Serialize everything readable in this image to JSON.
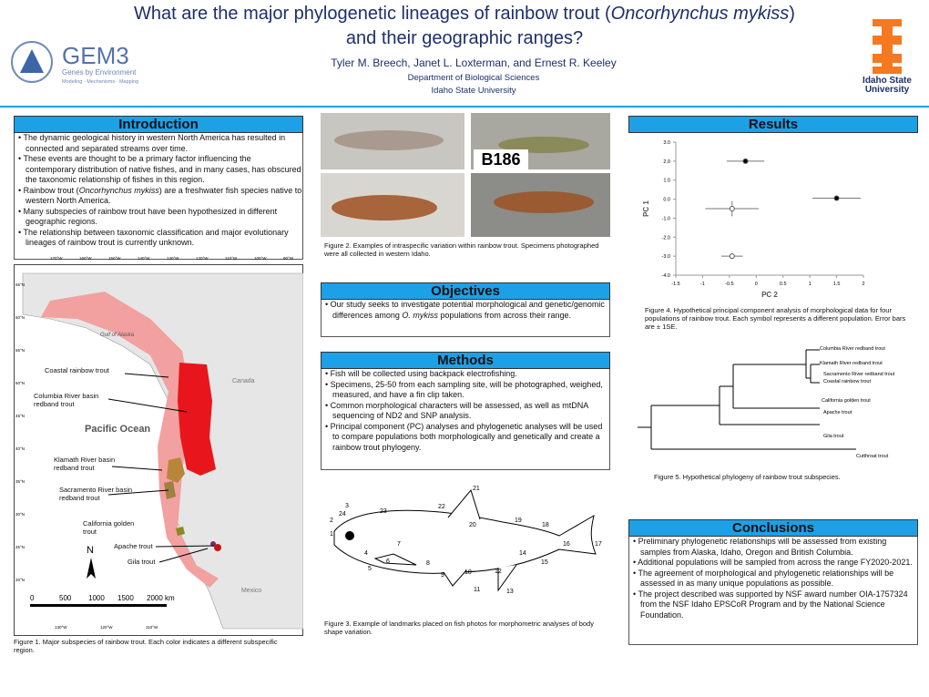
{
  "header": {
    "title_line1": [
      "What are the major phylogenetic lineages of rainbow trout (",
      "Oncorhynchus mykiss",
      ")"
    ],
    "title_line2": "and their geographic ranges?",
    "authors": "Tyler M. Breech, Janet L. Loxterman, and Ernest R. Keeley",
    "department": "Department of Biological Sciences",
    "university": "Idaho State University"
  },
  "logos": {
    "gem3": "GEM3",
    "gem3_sub": "Genes by Environment",
    "gem3_sub2": "Modeling · Mechanisms · Mapping",
    "isu_line1": "Idaho State",
    "isu_line2": "University"
  },
  "introduction": {
    "heading": "Introduction",
    "bullets": [
      [
        "The dynamic geological history in western North America has resulted in connected and separated streams over time."
      ],
      [
        "These events are thought to be a primary factor influencing the contemporary distribution of native fishes, and in many cases, has obscured the taxonomic relationship of fishes in this region."
      ],
      [
        "Rainbow trout (",
        "Oncorhynchus mykiss",
        ") are a freshwater fish species native to western North America."
      ],
      [
        "Many subspecies of rainbow trout have been hypothesized in different geographic regions."
      ],
      [
        "The relationship between taxonomic classification and major evolutionary lineages of rainbow trout is currently unknown."
      ]
    ]
  },
  "map": {
    "labels": {
      "coastal": "Coastal rainbow trout",
      "columbia": "Columbia River basin redband trout",
      "klamath": "Klamath River basin redband trout",
      "sacramento": "Sacramento River basin redband trout",
      "golden": "California golden trout",
      "apache": "Apache trout",
      "gila": "Gila trout"
    },
    "pacific": "Pacific Ocean",
    "gulf": "Gulf of Alaska",
    "canada": "Canada",
    "mexico": "Mexico",
    "north": "N",
    "scale": [
      "0",
      "500",
      "1000",
      "1500",
      "2000 km"
    ],
    "top_longitudes": [
      "170°W",
      "160°W",
      "150°W",
      "140°W",
      "130°W",
      "120°W",
      "110°W",
      "100°W",
      "90°W"
    ],
    "bottom_longitudes": [
      "130°W",
      "120°W",
      "110°W"
    ],
    "latitudes": [
      "65°N",
      "60°N",
      "55°N",
      "50°N",
      "45°N",
      "40°N",
      "35°N",
      "30°N",
      "25°N",
      "20°N"
    ]
  },
  "figure1_caption": "Figure 1. Major subspecies of rainbow trout.  Each color indicates a different subspecific region.",
  "photos": {
    "tag": "B186"
  },
  "figure2_caption": "Figure 2. Examples of intraspecific variation within rainbow trout.  Specimens photographed were all collected in western Idaho.",
  "objectives": {
    "heading": "Objectives",
    "bullets": [
      [
        "Our study seeks to investigate potential morphological and genetic/genomic differences among ",
        "O. mykiss",
        " populations from across their range."
      ]
    ]
  },
  "methods": {
    "heading": "Methods",
    "bullets": [
      [
        "Fish will be collected using backpack electrofishing."
      ],
      [
        "Specimens, 25-50  from each sampling site, will be photographed, weighed, measured, and have a fin clip taken."
      ],
      [
        "Common morphological characters will be assessed, as well as mtDNA sequencing of ND2 and SNP analysis."
      ],
      [
        "Principal component (PC) analyses and phylogenetic analyses will be used to compare populations both morphologically and genetically and create a rainbow trout phylogeny."
      ]
    ]
  },
  "landmarks": [
    1,
    2,
    3,
    4,
    5,
    6,
    7,
    8,
    9,
    10,
    11,
    12,
    13,
    14,
    15,
    16,
    17,
    18,
    19,
    20,
    21,
    22,
    23,
    24
  ],
  "figure3_caption": "Figure 3. Example of landmarks placed on fish photos for morphometric analyses of body shape variation.",
  "results": {
    "heading": "Results"
  },
  "pca": {
    "type": "scatter",
    "xlabel": "PC 2",
    "ylabel": "PC 1",
    "xlim": [
      -1.5,
      2
    ],
    "ylim": [
      -4,
      3
    ],
    "xticks": [
      -1.5,
      -1,
      -0.5,
      0,
      0.5,
      1,
      1.5,
      2
    ],
    "yticks": [
      {
        "value": 3,
        "label": "3.0"
      },
      {
        "value": 2,
        "label": "2.0"
      },
      {
        "value": 1,
        "label": "1.0"
      },
      {
        "value": 0,
        "label": "0.0"
      },
      {
        "value": -1,
        "label": "-1.0"
      },
      {
        "value": -2,
        "label": "-2.0"
      },
      {
        "value": -3,
        "label": "-3.0"
      },
      {
        "value": -4,
        "label": "-4.0"
      }
    ],
    "points": [
      {
        "x": -0.2,
        "y": 2.0,
        "xerr": 0.35,
        "yerr": 0.05,
        "filled": true
      },
      {
        "x": 1.5,
        "y": 0.05,
        "xerr": 0.45,
        "yerr": 0.1,
        "filled": true
      },
      {
        "x": -0.45,
        "y": -0.5,
        "xerr": 0.5,
        "yerr": 0.4,
        "filled": false
      },
      {
        "x": -0.45,
        "y": -3.0,
        "xerr": 0.2,
        "yerr": 0.15,
        "filled": false
      }
    ]
  },
  "figure4_caption": "Figure 4. Hypothetical principal component analysis of morphological data for four populations of rainbow trout. Each symbol represents a different population. Error bars are ± 1SE.",
  "phylogeny": {
    "leaves": [
      "Columbia River redband trout",
      "Klamath River redband trout",
      "Sacramento River redband trout",
      "Coastal rainbow trout",
      "California golden trout",
      "Apache trout",
      "Gila trout",
      "Cutthroat trout"
    ]
  },
  "figure5_caption": "Figure 5. Hypothetical phylogeny of rainbow trout subspecies.",
  "conclusions": {
    "heading": "Conclusions",
    "bullets": [
      [
        "Preliminary phylogenetic relationships will be assessed from existing samples from Alaska, Idaho, Oregon and British Columbia."
      ],
      [
        "Additional populations will be sampled from across the range FY2020-2021."
      ],
      [
        "The agreement of morphological and phylogenetic relationships will be assessed in as many unique populations as possible."
      ],
      [
        "The project described was supported by NSF award number OIA-1757324 from the NSF Idaho EPSCoR Program and by the National Science Foundation."
      ]
    ]
  }
}
